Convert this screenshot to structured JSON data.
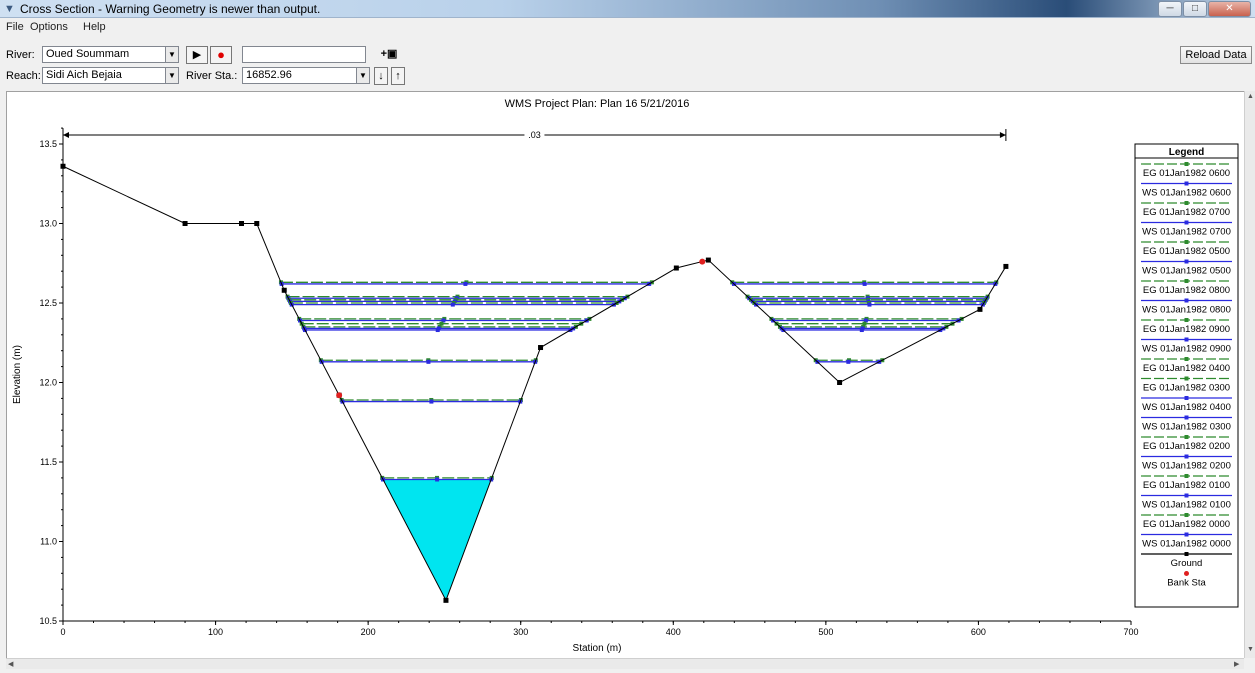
{
  "window": {
    "title": "Cross Section - Warning Geometry is newer than output."
  },
  "menu": [
    "File",
    "Options",
    "Help"
  ],
  "toolbar": {
    "river_label": "River:",
    "river_value": "Oued Soummam",
    "reach_label": "Reach:",
    "reach_value": "Sidi Aich Bejaia",
    "river_sta_label": "River Sta.:",
    "river_sta_value": "16852.96",
    "profile_value": "",
    "reload_label": "Reload Data"
  },
  "chart_data": {
    "type": "line",
    "title": "WMS Project      Plan: Plan 16    5/21/2016",
    "xlabel": "Station (m)",
    "ylabel": "Elevation (m)",
    "xlim": [
      0,
      700
    ],
    "ylim": [
      10.5,
      13.6
    ],
    "xticks": [
      0,
      100,
      200,
      300,
      400,
      500,
      600,
      700
    ],
    "yticks": [
      10.5,
      11.0,
      11.5,
      12.0,
      12.5,
      13.0,
      13.5
    ],
    "manning_label": ".03",
    "manning_extent": [
      0,
      618
    ],
    "ground": {
      "name": "Ground",
      "x": [
        0,
        80,
        117,
        127,
        145,
        181,
        251,
        313,
        402,
        423,
        509,
        601,
        618
      ],
      "y": [
        13.36,
        13.0,
        13.0,
        13.0,
        12.58,
        11.92,
        10.63,
        12.22,
        12.72,
        12.77,
        12.0,
        12.46,
        12.73
      ]
    },
    "bank_stations": {
      "name": "Bank Sta",
      "x": [
        181,
        419
      ],
      "y": [
        11.92,
        12.76
      ]
    },
    "water_surfaces": [
      {
        "name": "EG 01Jan1982 0600",
        "kind": "EG",
        "y": 12.63
      },
      {
        "name": "WS 01Jan1982 0600",
        "kind": "WS",
        "y": 12.62
      },
      {
        "name": "EG 01Jan1982 0700",
        "kind": "EG",
        "y": 12.54
      },
      {
        "name": "WS 01Jan1982 0700",
        "kind": "WS",
        "y": 12.53
      },
      {
        "name": "EG 01Jan1982 0500",
        "kind": "EG",
        "y": 12.52
      },
      {
        "name": "WS 01Jan1982 0500",
        "kind": "WS",
        "y": 12.51
      },
      {
        "name": "EG 01Jan1982 0800",
        "kind": "EG",
        "y": 12.5
      },
      {
        "name": "WS 01Jan1982 0800",
        "kind": "WS",
        "y": 12.49
      },
      {
        "name": "EG 01Jan1982 0900",
        "kind": "EG",
        "y": 12.4
      },
      {
        "name": "WS 01Jan1982 0900",
        "kind": "WS",
        "y": 12.39
      },
      {
        "name": "EG 01Jan1982 0400",
        "kind": "EG",
        "y": 12.37
      },
      {
        "name": "EG 01Jan1982 0300",
        "kind": "EG",
        "y": 12.35
      },
      {
        "name": "WS 01Jan1982 0400",
        "kind": "WS",
        "y": 12.34
      },
      {
        "name": "WS 01Jan1982 0300",
        "kind": "WS",
        "y": 12.33
      },
      {
        "name": "EG 01Jan1982 0200",
        "kind": "EG",
        "y": 12.14
      },
      {
        "name": "WS 01Jan1982 0200",
        "kind": "WS",
        "y": 12.13
      },
      {
        "name": "EG 01Jan1982 0100",
        "kind": "EG",
        "y": 11.89
      },
      {
        "name": "WS 01Jan1982 0100",
        "kind": "WS",
        "y": 11.88
      },
      {
        "name": "EG 01Jan1982 0000",
        "kind": "EG",
        "y": 11.4
      },
      {
        "name": "WS 01Jan1982 0000",
        "kind": "WS",
        "y": 11.39
      }
    ],
    "filled_water_surface": "WS 01Jan1982 0000",
    "legend": {
      "title": "Legend",
      "placement": "right",
      "entries": [
        "EG 01Jan1982 0600",
        "WS 01Jan1982 0600",
        "EG 01Jan1982 0700",
        "WS 01Jan1982 0700",
        "EG 01Jan1982 0500",
        "WS 01Jan1982 0500",
        "EG 01Jan1982 0800",
        "WS 01Jan1982 0800",
        "EG 01Jan1982 0900",
        "WS 01Jan1982 0900",
        "EG 01Jan1982 0400",
        "EG 01Jan1982 0300",
        "WS 01Jan1982 0400",
        "WS 01Jan1982 0300",
        "EG 01Jan1982 0200",
        "WS 01Jan1982 0200",
        "EG 01Jan1982 0100",
        "WS 01Jan1982 0100",
        "EG 01Jan1982 0000",
        "WS 01Jan1982 0000",
        "Ground",
        "Bank Sta"
      ]
    },
    "colors": {
      "eg": "#2e8b2e",
      "ws": "#2b2be0",
      "ground": "#000000",
      "bank": "#e02020",
      "water_fill": "#00e5f0"
    }
  }
}
